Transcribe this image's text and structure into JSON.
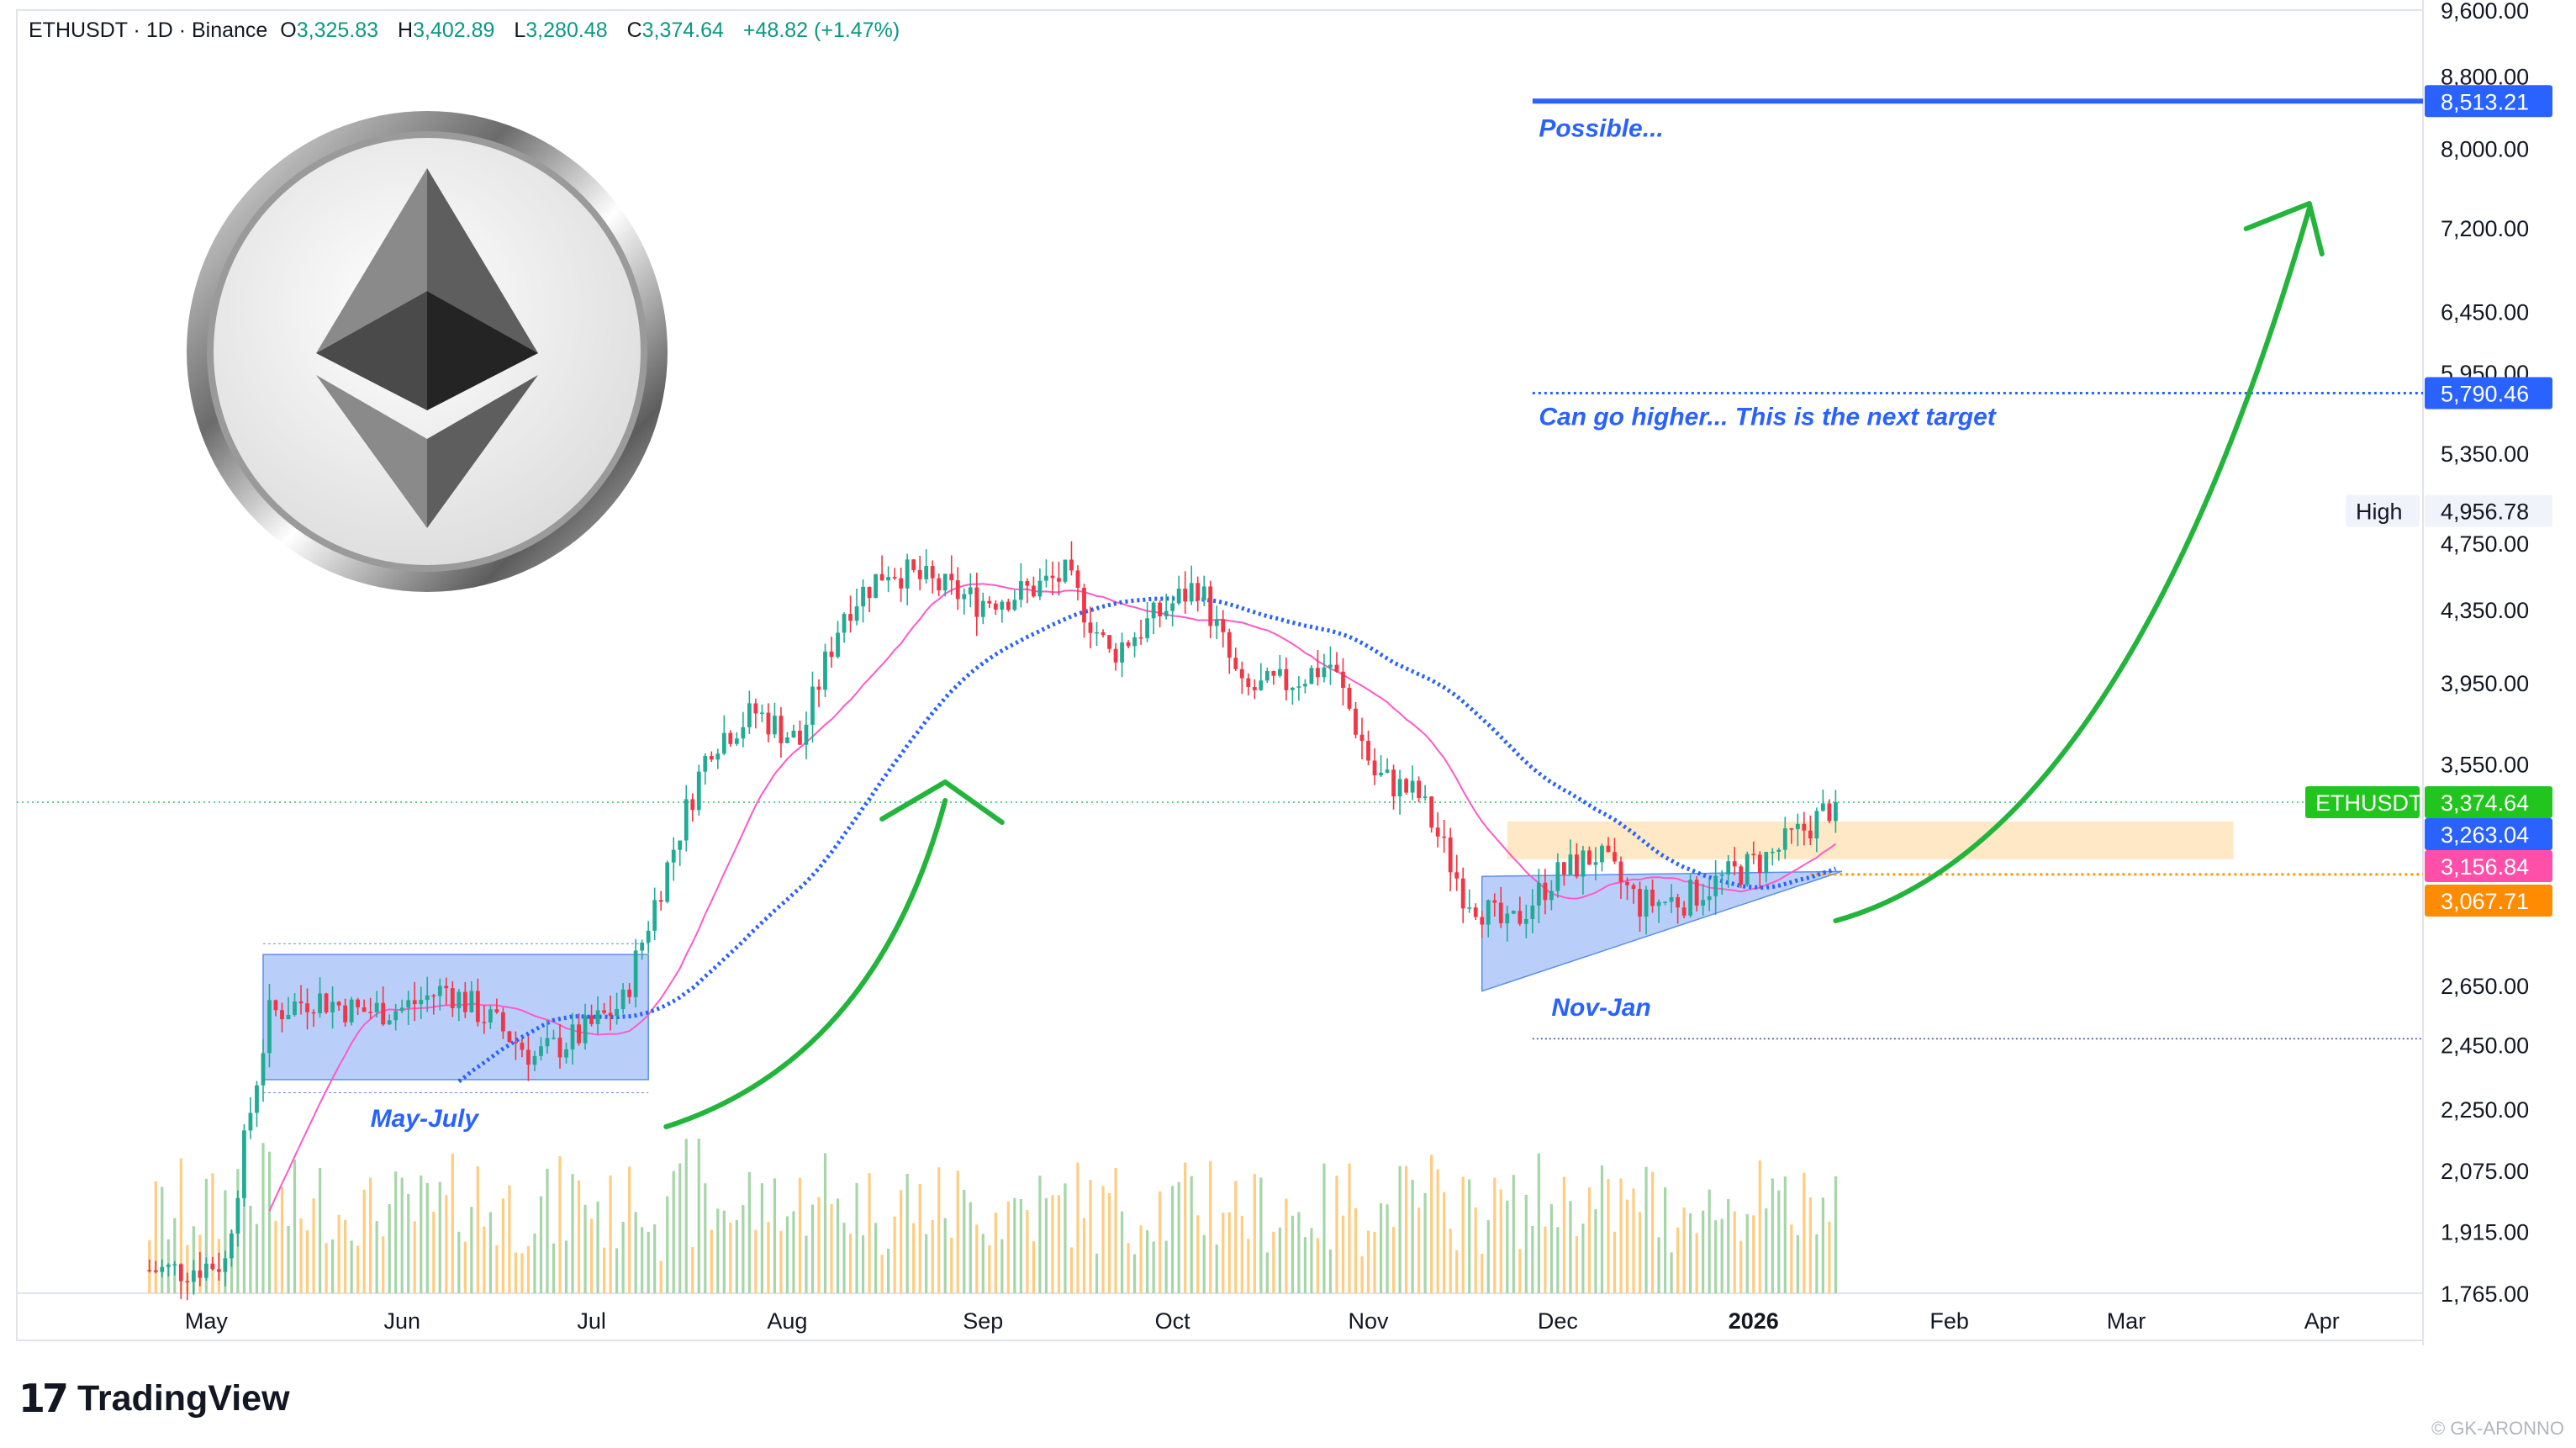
{
  "header": {
    "symbol": "ETHUSDT · 1D · Binance",
    "open_label": "O",
    "open": "3,325.83",
    "high_label": "H",
    "high": "3,402.89",
    "low_label": "L",
    "low": "3,280.48",
    "close_label": "C",
    "close": "3,374.64",
    "change": "+48.82 (+1.47%)"
  },
  "branding": {
    "logo_mark": "17",
    "name": "TradingView",
    "credit": "© GK-ARONNO"
  },
  "colors": {
    "up": "#22ab94",
    "down": "#f23645",
    "ma_blue": "#2962ff",
    "ma_pink": "#ff59c8",
    "arrow_green": "#22b43b",
    "annotation_blue": "#2962ff",
    "zone": "#7fa8f5",
    "support_orange": "#ff9800",
    "target_box": "#ffe0b2"
  },
  "chart_data": {
    "type": "candlestick",
    "title": "ETHUSDT · 1D · Binance",
    "y_scale": "log",
    "ylim": [
      1765,
      9600
    ],
    "y_ticks": [
      "9,600.00",
      "8,800.00",
      "8,000.00",
      "7,200.00",
      "6,450.00",
      "5,950.00",
      "5,350.00",
      "4,750.00",
      "4,350.00",
      "3,950.00",
      "3,550.00",
      "2,650.00",
      "2,450.00",
      "2,250.00",
      "2,075.00",
      "1,915.00",
      "1,765.00"
    ],
    "y_tick_values": [
      9600,
      8800,
      8000,
      7200,
      6450,
      5950,
      5350,
      4750,
      4350,
      3950,
      3550,
      2650,
      2450,
      2250,
      2075,
      1915,
      1765
    ],
    "x_ticks": [
      "May",
      "Jun",
      "Jul",
      "Aug",
      "Sep",
      "Oct",
      "Nov",
      "Dec",
      "2026",
      "Feb",
      "Mar",
      "Apr"
    ],
    "x_tick_dates": [
      "2025-05-01",
      "2025-06-01",
      "2025-07-01",
      "2025-08-01",
      "2025-09-01",
      "2025-10-01",
      "2025-11-01",
      "2025-12-01",
      "2026-01-01",
      "2026-02-01",
      "2026-03-01",
      "2026-04-01"
    ],
    "weekly_close": [
      {
        "date": "2025-04-27",
        "close": 1820
      },
      {
        "date": "2025-05-04",
        "close": 1840
      },
      {
        "date": "2025-05-11",
        "close": 2550
      },
      {
        "date": "2025-05-18",
        "close": 2610
      },
      {
        "date": "2025-05-25",
        "close": 2560
      },
      {
        "date": "2025-06-01",
        "close": 2570
      },
      {
        "date": "2025-06-08",
        "close": 2640
      },
      {
        "date": "2025-06-15",
        "close": 2530
      },
      {
        "date": "2025-06-22",
        "close": 2410
      },
      {
        "date": "2025-06-29",
        "close": 2480
      },
      {
        "date": "2025-07-06",
        "close": 2590
      },
      {
        "date": "2025-07-13",
        "close": 3100
      },
      {
        "date": "2025-07-20",
        "close": 3650
      },
      {
        "date": "2025-07-27",
        "close": 3800
      },
      {
        "date": "2025-08-03",
        "close": 3650
      },
      {
        "date": "2025-08-10",
        "close": 4350
      },
      {
        "date": "2025-08-17",
        "close": 4600
      },
      {
        "date": "2025-08-24",
        "close": 4500
      },
      {
        "date": "2025-08-31",
        "close": 4400
      },
      {
        "date": "2025-09-07",
        "close": 4450
      },
      {
        "date": "2025-09-14",
        "close": 4550
      },
      {
        "date": "2025-09-21",
        "close": 4100
      },
      {
        "date": "2025-09-28",
        "close": 4300
      },
      {
        "date": "2025-10-05",
        "close": 4500
      },
      {
        "date": "2025-10-12",
        "close": 3900
      },
      {
        "date": "2025-10-19",
        "close": 3950
      },
      {
        "date": "2025-10-26",
        "close": 4050
      },
      {
        "date": "2025-11-02",
        "close": 3500
      },
      {
        "date": "2025-11-09",
        "close": 3400
      },
      {
        "date": "2025-11-16",
        "close": 3000
      },
      {
        "date": "2025-11-23",
        "close": 2850
      },
      {
        "date": "2025-11-30",
        "close": 3050
      },
      {
        "date": "2025-12-07",
        "close": 3150
      },
      {
        "date": "2025-12-14",
        "close": 2950
      },
      {
        "date": "2025-12-21",
        "close": 2970
      },
      {
        "date": "2026-01-04",
        "close": 3150
      },
      {
        "date": "2026-01-11",
        "close": 3300
      },
      {
        "date": "2026-01-14",
        "close": 3374.64
      }
    ],
    "series": [
      {
        "name": "ETHUSDT",
        "values": []
      }
    ],
    "price_labels": [
      {
        "value": 8513.21,
        "text": "8,513.21"
      },
      {
        "value": 5790.46,
        "text": "5,790.46"
      },
      {
        "value": 4956.78,
        "text": "4,956.78",
        "prefix": "High"
      },
      {
        "value": 3374.64,
        "text": "3,374.64",
        "prefix": "ETHUSDT"
      },
      {
        "value": 3263.04,
        "text": "3,263.04"
      },
      {
        "value": 3156.84,
        "text": "3,156.84"
      },
      {
        "value": 3067.71,
        "text": "3,067.71"
      }
    ],
    "annotations": [
      {
        "text": "Possible..."
      },
      {
        "text": "Can go higher... This is the next target"
      },
      {
        "text": "May-July"
      },
      {
        "text": "Nov-Jan"
      }
    ],
    "volume_shown": true,
    "grid": false,
    "legend": "none"
  }
}
